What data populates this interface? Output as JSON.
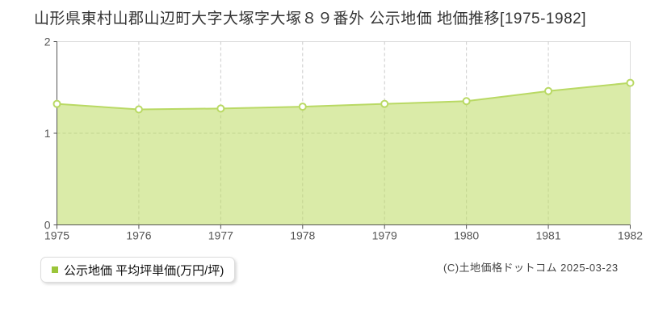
{
  "page": {
    "title": "山形県東村山郡山辺町大字大塚字大塚８９番外 公示地価 地価推移[1975-1982]",
    "copyright": "(C)土地価格ドットコム 2025-03-23"
  },
  "legend": {
    "label": "公示地価 平均坪単価(万円/坪)",
    "marker_color": "#9bc53a"
  },
  "chart_data": {
    "type": "area",
    "title": "山形県東村山郡山辺町大字大塚字大塚８９番外 公示地価 地価推移[1975-1982]",
    "categories": [
      "1975",
      "1976",
      "1977",
      "1978",
      "1979",
      "1980",
      "1981",
      "1982"
    ],
    "series": [
      {
        "name": "公示地価 平均坪単価(万円/坪)",
        "values": [
          1.32,
          1.26,
          1.27,
          1.29,
          1.32,
          1.35,
          1.46,
          1.55
        ]
      }
    ],
    "xlabel": "",
    "ylabel": "",
    "ylim": [
      0,
      2
    ],
    "yticks": [
      0,
      1,
      2
    ],
    "grid": true,
    "legend_position": "bottom-left",
    "colors": {
      "line": "#b9d964",
      "fill": "#bcdb60",
      "marker_fill": "#ffffff",
      "grid": "#cccccc",
      "axis": "#555555",
      "plot_border": "#dddddd",
      "tick_label": "#555555",
      "title": "#333333"
    }
  }
}
